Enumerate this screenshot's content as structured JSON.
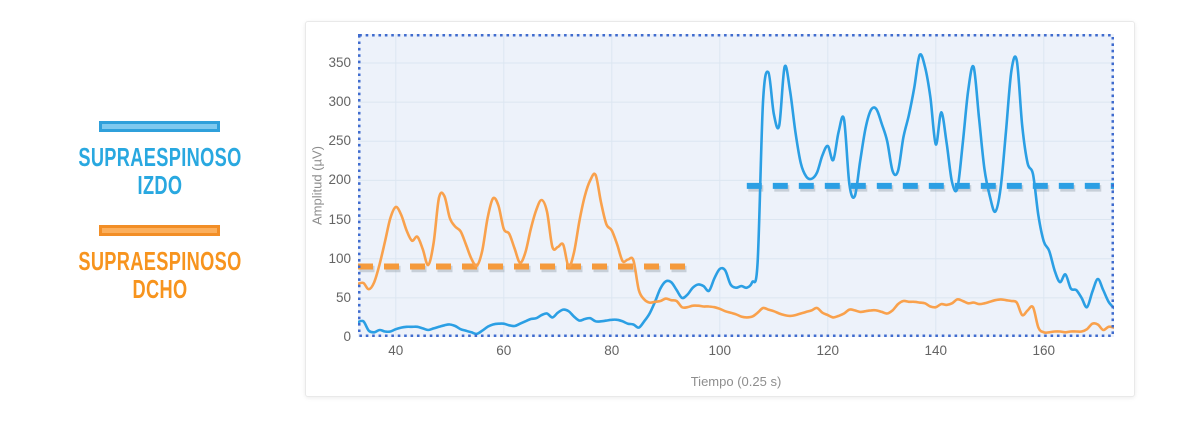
{
  "page": {
    "background": "#ffffff"
  },
  "legend": {
    "items": [
      {
        "id": "izdo",
        "line1": "SUPRAESPINOSO",
        "line2": "IZDO",
        "text_color": "#29A8E0",
        "bar_fill": "#7FC9EF",
        "bar_border": "#2FA0DB"
      },
      {
        "id": "dcho",
        "line1": "SUPRAESPINOSO",
        "line2": "DCHO",
        "text_color": "#F7941E",
        "bar_fill": "#FBAF5D",
        "bar_border": "#F28E26"
      }
    ]
  },
  "chart_data": {
    "type": "line",
    "title": "",
    "xlabel": "Tiempo (0.25 s)",
    "ylabel": "Amplitud (µV)",
    "xlim": [
      33,
      173
    ],
    "ylim": [
      0,
      387
    ],
    "xticks": [
      40,
      60,
      80,
      100,
      120,
      140,
      160
    ],
    "yticks": [
      0,
      50,
      100,
      150,
      200,
      250,
      300,
      350
    ],
    "grid": true,
    "legend_position": "left-outside",
    "plot_bg": "#EDF2FA",
    "grid_color": "#DCE6F1",
    "border_color": "#3F6BCE",
    "x": [
      33,
      34,
      35,
      36,
      37,
      38,
      39,
      40,
      41,
      42,
      43,
      44,
      45,
      46,
      47,
      48,
      49,
      50,
      51,
      52,
      53,
      54,
      55,
      56,
      57,
      58,
      59,
      60,
      61,
      62,
      63,
      64,
      65,
      66,
      67,
      68,
      69,
      70,
      71,
      72,
      73,
      74,
      75,
      76,
      77,
      78,
      79,
      80,
      81,
      82,
      83,
      84,
      85,
      86,
      87,
      88,
      89,
      90,
      91,
      92,
      93,
      94,
      95,
      96,
      97,
      98,
      99,
      100,
      101,
      102,
      103,
      104,
      105,
      106,
      107,
      108,
      109,
      110,
      111,
      112,
      113,
      114,
      115,
      116,
      117,
      118,
      119,
      120,
      121,
      122,
      123,
      124,
      125,
      126,
      127,
      128,
      129,
      130,
      131,
      132,
      133,
      134,
      135,
      136,
      137,
      138,
      139,
      140,
      141,
      142,
      143,
      144,
      145,
      146,
      147,
      148,
      149,
      150,
      151,
      152,
      153,
      154,
      155,
      156,
      157,
      158,
      159,
      160,
      161,
      162,
      163,
      164,
      165,
      166,
      167,
      168,
      169,
      170,
      171,
      172,
      173
    ],
    "series": [
      {
        "name": "SUPRAESPINOSO IZDO",
        "color": "#2B9FE4",
        "values": [
          19,
          20,
          8,
          6,
          9,
          7,
          7,
          10,
          12,
          13,
          13,
          13,
          11,
          9,
          11,
          13,
          15,
          16,
          14,
          10,
          8,
          6,
          4,
          8,
          13,
          16,
          17,
          17,
          15,
          14,
          17,
          20,
          23,
          24,
          28,
          30,
          25,
          31,
          35,
          33,
          26,
          21,
          23,
          24,
          20,
          20,
          21,
          22,
          22,
          20,
          17,
          16,
          12,
          20,
          30,
          45,
          62,
          71,
          70,
          60,
          50,
          54,
          63,
          67,
          65,
          59,
          75,
          87,
          85,
          67,
          63,
          65,
          63,
          70,
          95,
          300,
          338,
          285,
          270,
          345,
          315,
          262,
          222,
          205,
          202,
          210,
          232,
          244,
          226,
          262,
          278,
          195,
          180,
          225,
          267,
          290,
          291,
          272,
          250,
          212,
          212,
          255,
          283,
          318,
          360,
          345,
          306,
          246,
          287,
          248,
          198,
          190,
          248,
          315,
          345,
          280,
          215,
          180,
          160,
          190,
          263,
          340,
          353,
          270,
          222,
          208,
          155,
          122,
          110,
          85,
          70,
          80,
          62,
          60,
          50,
          38,
          58,
          74,
          60,
          45,
          37
        ]
      },
      {
        "name": "SUPRAESPINOSO DCHO",
        "color": "#F9A14C",
        "values": [
          68,
          69,
          61,
          70,
          93,
          122,
          152,
          166,
          156,
          136,
          123,
          128,
          112,
          92,
          120,
          178,
          180,
          152,
          141,
          135,
          118,
          100,
          91,
          110,
          152,
          177,
          168,
          138,
          132,
          113,
          95,
          108,
          138,
          162,
          175,
          160,
          115,
          115,
          118,
          90,
          108,
          148,
          180,
          200,
          207,
          172,
          144,
          136,
          118,
          97,
          99,
          98,
          60,
          48,
          44,
          45,
          46,
          49,
          47,
          46,
          38,
          38,
          40,
          40,
          39,
          39,
          38,
          36,
          33,
          31,
          29,
          26,
          25,
          26,
          31,
          37,
          35,
          33,
          30,
          28,
          27,
          28,
          30,
          32,
          34,
          37,
          31,
          28,
          25,
          27,
          30,
          35,
          34,
          32,
          33,
          34,
          34,
          32,
          30,
          34,
          42,
          46,
          45,
          45,
          44,
          43,
          39,
          38,
          42,
          41,
          43,
          48,
          46,
          43,
          44,
          42,
          43,
          45,
          47,
          48,
          47,
          46,
          44,
          28,
          34,
          38,
          12,
          6,
          6,
          7,
          7,
          6,
          7,
          7,
          7,
          10,
          17,
          16,
          9,
          13,
          12
        ]
      }
    ],
    "mean_lines": [
      {
        "name": "izdo-mean",
        "value": 193,
        "x_from": 105,
        "x_to": 173,
        "color": "#2B9FE4"
      },
      {
        "name": "dcho-mean",
        "value": 90,
        "x_from": 33,
        "x_to": 95,
        "color": "#F59A3C"
      }
    ]
  }
}
